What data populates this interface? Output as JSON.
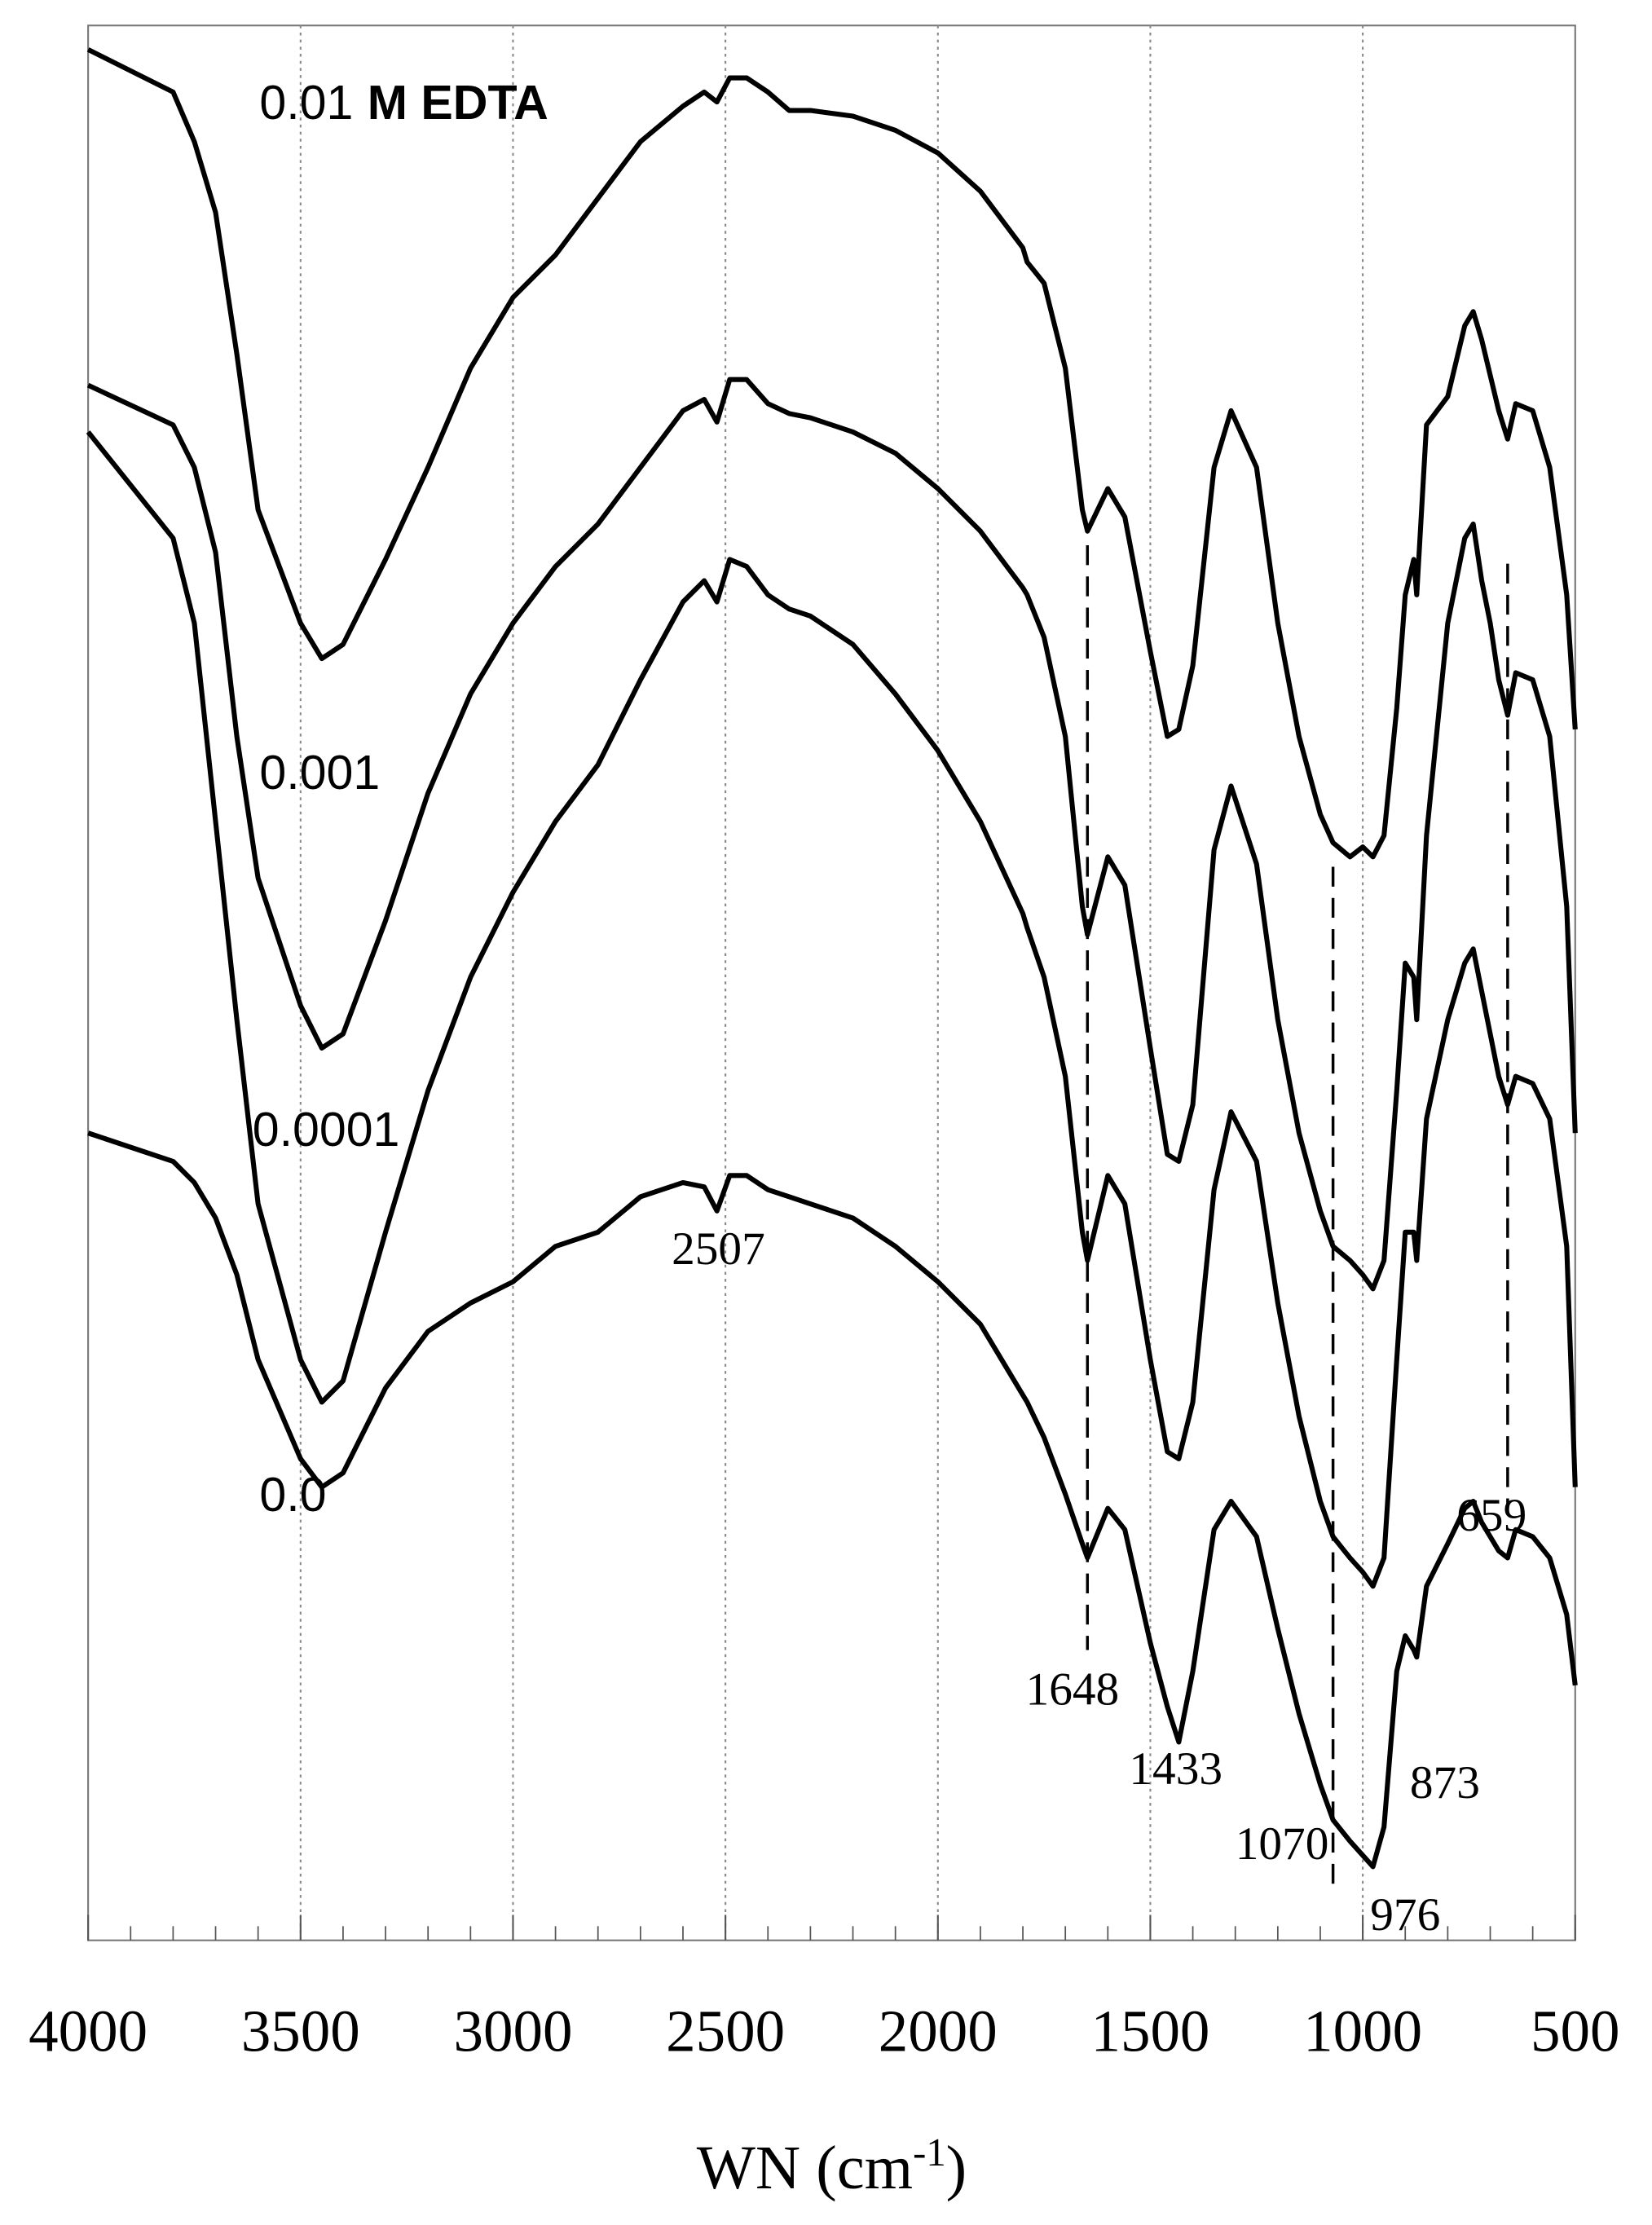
{
  "chart_data": {
    "type": "line",
    "xlabel": [
      "WN (cm",
      "-1",
      ")"
    ],
    "xlim": [
      4000,
      500
    ],
    "xticks": [
      4000,
      3500,
      3000,
      2500,
      2000,
      1500,
      1000,
      500
    ],
    "ylim": [
      0,
      1352
    ],
    "grid": true,
    "x": [
      4000,
      3800,
      3750,
      3700,
      3650,
      3600,
      3500,
      3450,
      3400,
      3300,
      3200,
      3100,
      3000,
      2900,
      2800,
      2700,
      2600,
      2550,
      2520,
      2490,
      2450,
      2400,
      2350,
      2300,
      2200,
      2100,
      2000,
      1900,
      1800,
      1790,
      1750,
      1700,
      1660,
      1648,
      1600,
      1560,
      1500,
      1460,
      1433,
      1400,
      1350,
      1310,
      1250,
      1200,
      1150,
      1100,
      1070,
      1030,
      1000,
      976,
      950,
      920,
      900,
      880,
      873,
      850,
      800,
      760,
      740,
      720,
      700,
      680,
      659,
      640,
      600,
      560,
      520,
      500
    ],
    "series": [
      {
        "name": "0.01",
        "color": "#000000",
        "values": [
          1335,
          1305,
          1270,
          1220,
          1120,
          1010,
          930,
          905,
          915,
          975,
          1040,
          1110,
          1160,
          1190,
          1230,
          1270,
          1295,
          1305,
          1298,
          1315,
          1315,
          1305,
          1292,
          1292,
          1288,
          1278,
          1262,
          1235,
          1195,
          1185,
          1170,
          1110,
          1010,
          995,
          1025,
          1005,
          910,
          850,
          855,
          900,
          1040,
          1080,
          1040,
          930,
          850,
          795,
          775,
          765,
          772,
          765,
          780,
          870,
          950,
          975,
          950,
          1070,
          1090,
          1140,
          1150,
          1130,
          1105,
          1080,
          1060,
          1085,
          1080,
          1040,
          950,
          855
        ]
      },
      {
        "name": "0.001",
        "color": "#000000",
        "values": [
          1098,
          1070,
          1040,
          980,
          850,
          750,
          660,
          630,
          640,
          720,
          810,
          880,
          930,
          970,
          1000,
          1040,
          1080,
          1088,
          1072,
          1102,
          1102,
          1085,
          1078,
          1075,
          1065,
          1050,
          1025,
          995,
          955,
          950,
          920,
          850,
          730,
          710,
          765,
          745,
          630,
          555,
          550,
          590,
          770,
          815,
          760,
          650,
          570,
          515,
          490,
          480,
          470,
          460,
          480,
          600,
          690,
          680,
          650,
          780,
          930,
          990,
          1000,
          960,
          930,
          890,
          865,
          895,
          890,
          850,
          730,
          570
        ]
      },
      {
        "name": "0.0001",
        "color": "#000000",
        "values": [
          1065,
          990,
          930,
          790,
          650,
          520,
          410,
          380,
          395,
          500,
          600,
          680,
          740,
          790,
          830,
          890,
          945,
          960,
          945,
          975,
          970,
          950,
          940,
          935,
          915,
          880,
          840,
          790,
          725,
          715,
          680,
          610,
          500,
          480,
          540,
          520,
          410,
          345,
          340,
          380,
          530,
          585,
          550,
          450,
          370,
          310,
          285,
          270,
          260,
          250,
          270,
          410,
          500,
          500,
          480,
          580,
          650,
          690,
          700,
          670,
          640,
          610,
          590,
          610,
          605,
          580,
          490,
          320
        ]
      },
      {
        "name": "0.0",
        "color": "#000000",
        "values": [
          570,
          550,
          535,
          510,
          470,
          410,
          340,
          320,
          330,
          390,
          430,
          450,
          465,
          490,
          500,
          525,
          535,
          532,
          515,
          540,
          540,
          530,
          525,
          520,
          510,
          490,
          465,
          435,
          385,
          380,
          355,
          315,
          280,
          270,
          305,
          290,
          210,
          165,
          140,
          190,
          290,
          310,
          285,
          220,
          160,
          110,
          85,
          70,
          60,
          52,
          80,
          190,
          215,
          205,
          200,
          250,
          280,
          305,
          310,
          295,
          285,
          275,
          270,
          290,
          285,
          270,
          230,
          180
        ]
      }
    ],
    "title_suffix": "M EDTA",
    "peak_labels": [
      2507,
      1648,
      1433,
      1070,
      976,
      873,
      659
    ],
    "marker_lines": [
      1648,
      1070,
      659
    ]
  }
}
